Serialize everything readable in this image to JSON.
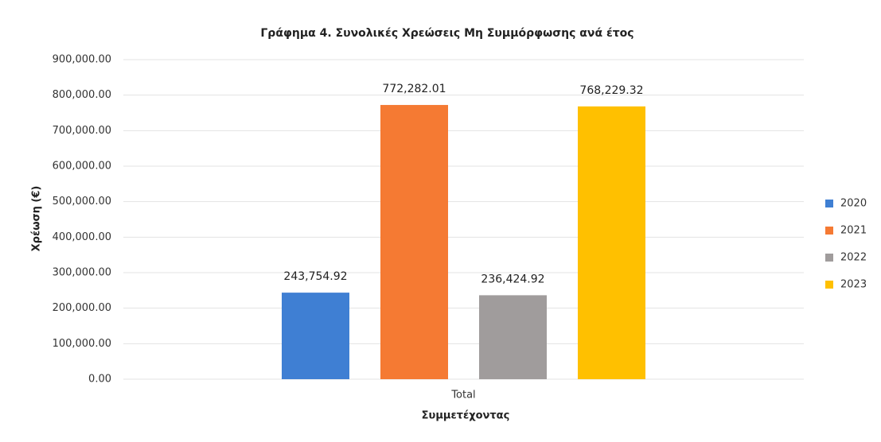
{
  "chart_data": {
    "type": "bar",
    "title": "Γράφημα 4. Συνολικές Χρεώσεις Μη Συμμόρφωσης ανά έτος",
    "x_label": "Συμμετέχοντας",
    "y_label": "Χρέωση (€)",
    "categories": [
      "Total"
    ],
    "series": [
      {
        "name": "2020",
        "color": "#3f7fd3",
        "values": [
          243754.92
        ],
        "value_labels": [
          "243,754.92"
        ]
      },
      {
        "name": "2021",
        "color": "#f57a33",
        "values": [
          772282.01
        ],
        "value_labels": [
          "772,282.01"
        ]
      },
      {
        "name": "2022",
        "color": "#a09c9c",
        "values": [
          236424.92
        ],
        "value_labels": [
          "236,424.92"
        ]
      },
      {
        "name": "2023",
        "color": "#ffc000",
        "values": [
          768229.32
        ],
        "value_labels": [
          "768,229.32"
        ]
      }
    ],
    "ylim": [
      0,
      900000
    ],
    "yticks": [
      {
        "value": 0,
        "label": "0.00"
      },
      {
        "value": 100000,
        "label": "100,000.00"
      },
      {
        "value": 200000,
        "label": "200,000.00"
      },
      {
        "value": 300000,
        "label": "300,000.00"
      },
      {
        "value": 400000,
        "label": "400,000.00"
      },
      {
        "value": 500000,
        "label": "500,000.00"
      },
      {
        "value": 600000,
        "label": "600,000.00"
      },
      {
        "value": 700000,
        "label": "700,000.00"
      },
      {
        "value": 800000,
        "label": "800,000.00"
      },
      {
        "value": 900000,
        "label": "900,000.00"
      }
    ],
    "grid": true,
    "legend": "right"
  }
}
